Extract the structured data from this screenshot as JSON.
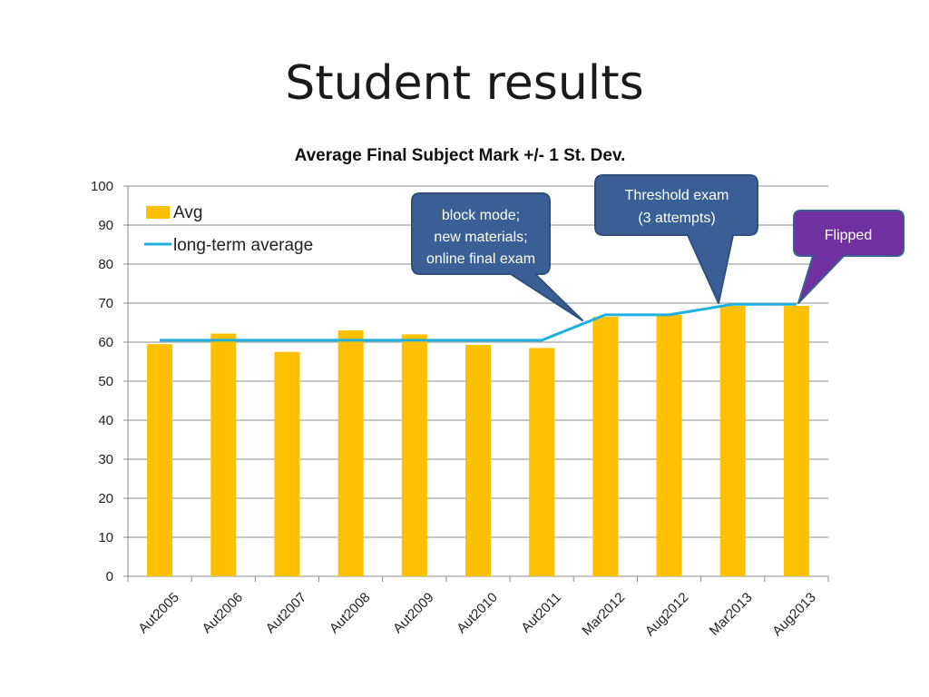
{
  "slide": {
    "title": "Student results"
  },
  "chart_data": {
    "type": "bar",
    "title": "Average Final Subject Mark +/- 1 St. Dev.",
    "xlabel": "",
    "ylabel": "",
    "ylim": [
      0,
      100
    ],
    "yticks": [
      0,
      10,
      20,
      30,
      40,
      50,
      60,
      70,
      80,
      90,
      100
    ],
    "grid": true,
    "categories": [
      "Aut2005",
      "Aut2006",
      "Aut2007",
      "Aut2008",
      "Aut2009",
      "Aut2010",
      "Aut2011",
      "Mar2012",
      "Aug2012",
      "Mar2013",
      "Aug2013"
    ],
    "series": [
      {
        "name": "Avg",
        "kind": "bar",
        "color": "#FFC000",
        "values": [
          59.5,
          62.2,
          57.5,
          63.0,
          62.0,
          59.3,
          58.5,
          66.5,
          67.0,
          69.3,
          69.3
        ]
      },
      {
        "name": "long-term average",
        "kind": "line",
        "color": "#1FB0E0",
        "values": [
          60.5,
          60.5,
          60.5,
          60.5,
          60.5,
          60.5,
          60.5,
          67.0,
          67.0,
          69.7,
          69.7
        ]
      }
    ],
    "legend": {
      "position": "top-left",
      "entries": [
        "Avg",
        "long-term average"
      ]
    },
    "annotations": [
      {
        "id": "block",
        "lines": [
          "block mode;",
          "new materials;",
          "online final exam"
        ],
        "color": "#3A5F94",
        "points_to": "Mar2012"
      },
      {
        "id": "threshold",
        "lines": [
          "Threshold exam",
          "(3 attempts)"
        ],
        "color": "#3A5F94",
        "points_to": "Mar2013"
      },
      {
        "id": "flipped",
        "lines": [
          "Flipped"
        ],
        "color": "#7030A0",
        "points_to": "Aug2013"
      }
    ]
  }
}
